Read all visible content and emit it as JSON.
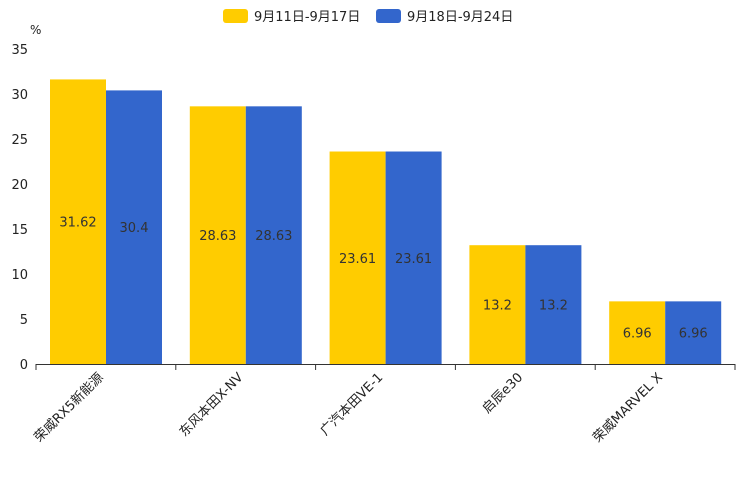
{
  "chart_data": {
    "type": "bar",
    "ylabel": "%",
    "ylim": [
      0,
      35
    ],
    "yticks": [
      0,
      5,
      10,
      15,
      20,
      25,
      30,
      35
    ],
    "categories": [
      "荣威RX5新能源",
      "东风本田X-NV",
      "广汽本田VE-1",
      "启辰e30",
      "荣威MARVEL X"
    ],
    "series": [
      {
        "name": "9月11日-9月17日",
        "color": "#FFCC00",
        "values": [
          31.62,
          28.63,
          23.61,
          13.2,
          6.96
        ]
      },
      {
        "name": "9月18日-9月24日",
        "color": "#3366CC",
        "values": [
          30.4,
          28.63,
          23.61,
          13.2,
          6.96
        ]
      }
    ],
    "legend_position": "top-center",
    "grid": false
  }
}
